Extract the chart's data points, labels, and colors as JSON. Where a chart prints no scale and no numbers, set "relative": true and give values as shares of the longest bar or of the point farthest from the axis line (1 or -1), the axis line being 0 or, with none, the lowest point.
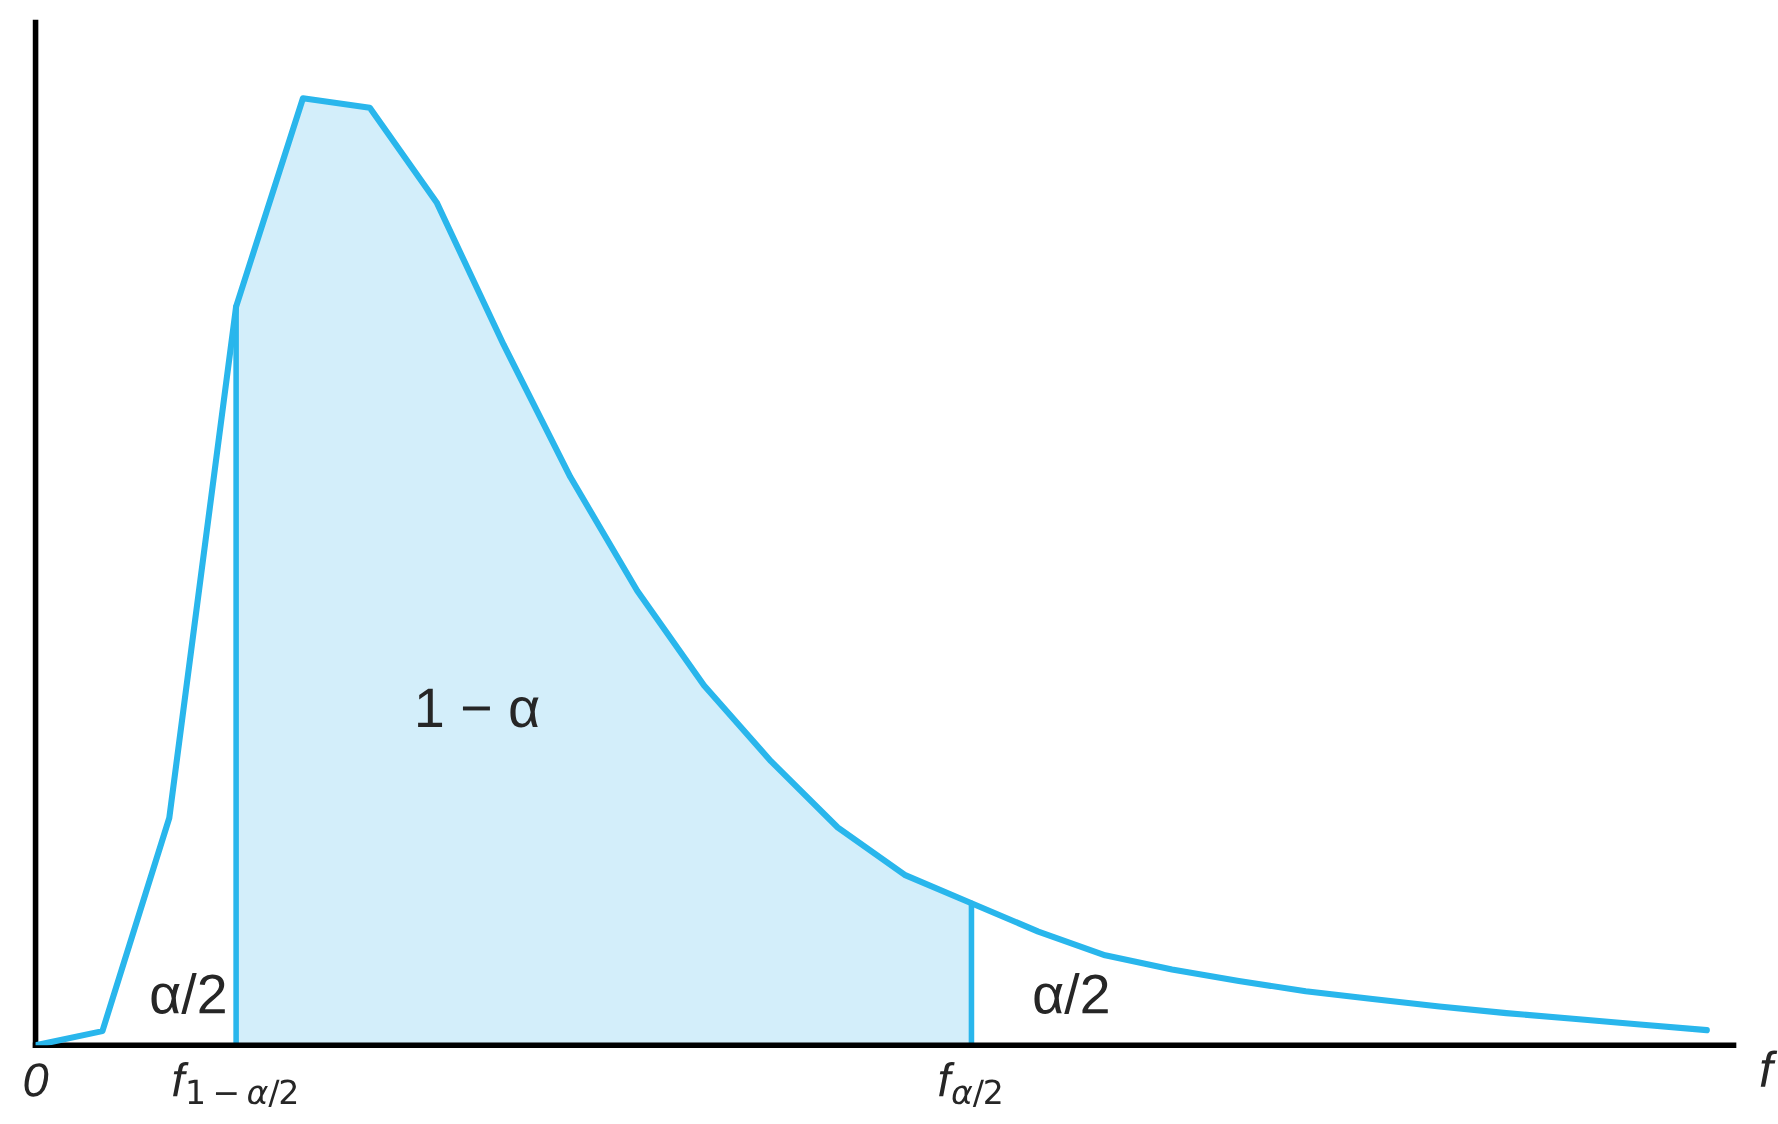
{
  "chart_data": {
    "type": "line",
    "relative": true,
    "xlabel": "f",
    "categories": [
      "0",
      null,
      null,
      "f$_{1−α/2}$",
      null,
      null,
      null,
      null,
      null,
      null,
      null,
      null,
      null,
      null,
      "f$_{α/2}$",
      null,
      null,
      null,
      null,
      null,
      null,
      null,
      null,
      null,
      null,
      null
    ],
    "series": [
      {
        "color": "#29b6ec",
        "values": [
          0,
          0.015,
          0.24,
          0.78,
          1.0,
          0.99,
          0.89,
          0.74,
          0.6,
          0.48,
          0.38,
          0.3,
          0.23,
          0.18,
          0.15,
          0.12,
          0.095,
          0.08,
          0.068,
          0.057,
          0.049,
          0.041,
          0.034,
          0.028,
          0.022,
          0.016
        ]
      },
      {
        "type": "area",
        "color": "#d3eefa",
        "values": [
          null,
          null,
          null,
          0.78,
          1.0,
          0.99,
          0.89,
          0.74,
          0.6,
          0.48,
          0.38,
          0.3,
          0.23,
          0.18,
          0.15,
          null,
          null,
          null,
          null,
          null,
          null,
          null,
          null,
          null,
          null,
          null
        ]
      }
    ],
    "annotations": [
      "α/2",
      "1 − α",
      "α/2"
    ],
    "grid": false,
    "legend": false
  }
}
